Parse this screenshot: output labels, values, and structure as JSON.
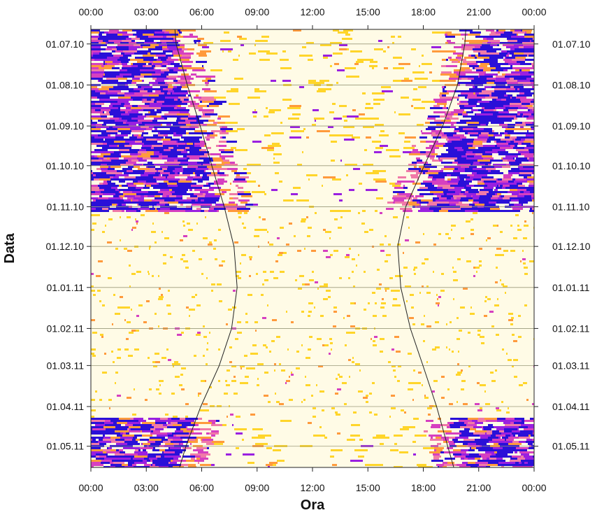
{
  "chart_data": {
    "type": "heatmap",
    "title": "",
    "xlabel": "Ora",
    "ylabel": "Data",
    "x_ticks": [
      "00:00",
      "03:00",
      "06:00",
      "09:00",
      "12:00",
      "15:00",
      "18:00",
      "21:00",
      "00:00"
    ],
    "x_tick_hours": [
      0,
      3,
      6,
      9,
      12,
      15,
      18,
      21,
      24
    ],
    "xlim": [
      0,
      24
    ],
    "y_ticks": [
      "01.07.10",
      "01.08.10",
      "01.09.10",
      "01.10.10",
      "01.11.10",
      "01.12.10",
      "01.01.11",
      "01.02.11",
      "01.03.11",
      "01.04.11",
      "01.05.11"
    ],
    "y_tick_dates": [
      "2010-07-01",
      "2010-08-01",
      "2010-09-01",
      "2010-10-01",
      "2010-11-01",
      "2010-12-01",
      "2011-01-01",
      "2011-02-01",
      "2011-03-01",
      "2011-04-01",
      "2011-05-01"
    ],
    "ylim": [
      "2010-06-20",
      "2011-05-17"
    ],
    "y_reversed": true,
    "grid": "horizontal",
    "palette": [
      "#fffbe6",
      "#ffd52a",
      "#ff9a3c",
      "#f07aa8",
      "#d640c0",
      "#9a20e0",
      "#2a10d8"
    ],
    "annotations": {
      "sunrise_line": [
        {
          "date": "2010-06-20",
          "hour": 4.55
        },
        {
          "date": "2010-07-01",
          "hour": 4.62
        },
        {
          "date": "2010-08-01",
          "hour": 5.22
        },
        {
          "date": "2010-09-01",
          "hour": 5.92
        },
        {
          "date": "2010-10-01",
          "hour": 6.55
        },
        {
          "date": "2010-11-01",
          "hour": 7.22
        },
        {
          "date": "2010-12-01",
          "hour": 7.75
        },
        {
          "date": "2011-01-01",
          "hour": 7.92
        },
        {
          "date": "2011-02-01",
          "hour": 7.62
        },
        {
          "date": "2011-03-01",
          "hour": 6.95
        },
        {
          "date": "2011-04-01",
          "hour": 5.95
        },
        {
          "date": "2011-05-01",
          "hour": 5.15
        },
        {
          "date": "2011-05-17",
          "hour": 4.8
        }
      ],
      "sunset_line": [
        {
          "date": "2010-06-20",
          "hour": 20.3
        },
        {
          "date": "2010-07-01",
          "hour": 20.25
        },
        {
          "date": "2010-08-01",
          "hour": 19.85
        },
        {
          "date": "2010-09-01",
          "hour": 19.05
        },
        {
          "date": "2010-10-01",
          "hour": 18.05
        },
        {
          "date": "2010-11-01",
          "hour": 17.05
        },
        {
          "date": "2010-12-01",
          "hour": 16.62
        },
        {
          "date": "2011-01-01",
          "hour": 16.78
        },
        {
          "date": "2011-02-01",
          "hour": 17.3
        },
        {
          "date": "2011-03-01",
          "hour": 17.98
        },
        {
          "date": "2011-04-01",
          "hour": 18.72
        },
        {
          "date": "2011-05-01",
          "hour": 19.32
        },
        {
          "date": "2011-05-17",
          "hour": 19.65
        }
      ]
    }
  }
}
